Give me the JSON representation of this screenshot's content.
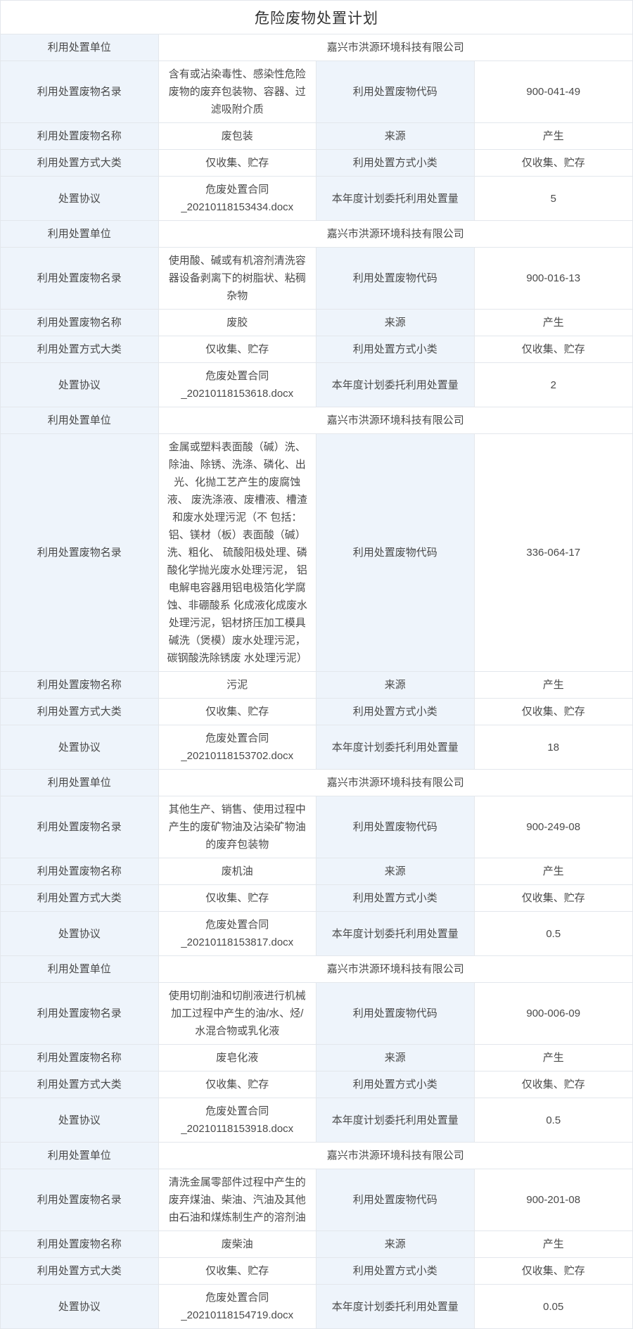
{
  "page_title": "危险废物处置计划",
  "labels": {
    "unit": "利用处置单位",
    "catalog": "利用处置废物名录",
    "code": "利用处置废物代码",
    "name": "利用处置废物名称",
    "source": "来源",
    "method_major": "利用处置方式大类",
    "method_minor": "利用处置方式小类",
    "agreement": "处置协议",
    "planned_amount": "本年度计划委托利用处置量"
  },
  "colors": {
    "label_bg": "#eef4fb",
    "border": "#e3e7ec",
    "text": "#4a4a4a"
  },
  "records": [
    {
      "unit": "嘉兴市洪源环境科技有限公司",
      "catalog": "含有或沾染毒性、感染性危险废物的废弃包装物、容器、过滤吸附介质",
      "code": "900-041-49",
      "name": "废包装",
      "source": "产生",
      "method_major": "仅收集、贮存",
      "method_minor": "仅收集、贮存",
      "agreement_file": "危废处置合同_20210118153434.docx",
      "planned_amount": "5"
    },
    {
      "unit": "嘉兴市洪源环境科技有限公司",
      "catalog": "使用酸、碱或有机溶剂清洗容器设备剥离下的树脂状、粘稠杂物",
      "code": "900-016-13",
      "name": "废胶",
      "source": "产生",
      "method_major": "仅收集、贮存",
      "method_minor": "仅收集、贮存",
      "agreement_file": "危废处置合同_20210118153618.docx",
      "planned_amount": "2"
    },
    {
      "unit": "嘉兴市洪源环境科技有限公司",
      "catalog": "金属或塑料表面酸（碱）洗、除油、除锈、洗涤、磷化、出光、化抛工艺产生的废腐蚀液、 废洗涤液、废槽液、槽渣和废水处理污泥（不 包括：铝、镁材（板）表面酸（碱）洗、粗化、 硫酸阳极处理、磷酸化学抛光废水处理污泥， 铝电解电容器用铝电极箔化学腐蚀、非硼酸系 化成液化成废水处理污泥，铝材挤压加工模具 碱洗（煲模）废水处理污泥，碳钢酸洗除锈废 水处理污泥）",
      "code": "336-064-17",
      "name": "污泥",
      "source": "产生",
      "method_major": "仅收集、贮存",
      "method_minor": "仅收集、贮存",
      "agreement_file": "危废处置合同_20210118153702.docx",
      "planned_amount": "18"
    },
    {
      "unit": "嘉兴市洪源环境科技有限公司",
      "catalog": "其他生产、销售、使用过程中产生的废矿物油及沾染矿物油的废弃包装物",
      "code": "900-249-08",
      "name": "废机油",
      "source": "产生",
      "method_major": "仅收集、贮存",
      "method_minor": "仅收集、贮存",
      "agreement_file": "危废处置合同_20210118153817.docx",
      "planned_amount": "0.5"
    },
    {
      "unit": "嘉兴市洪源环境科技有限公司",
      "catalog": "使用切削油和切削液进行机械加工过程中产生的油/水、烃/水混合物或乳化液",
      "code": "900-006-09",
      "name": "废皂化液",
      "source": "产生",
      "method_major": "仅收集、贮存",
      "method_minor": "仅收集、贮存",
      "agreement_file": "危废处置合同_20210118153918.docx",
      "planned_amount": "0.5"
    },
    {
      "unit": "嘉兴市洪源环境科技有限公司",
      "catalog": "清洗金属零部件过程中产生的废弃煤油、柴油、汽油及其他由石油和煤炼制生产的溶剂油",
      "code": "900-201-08",
      "name": "废柴油",
      "source": "产生",
      "method_major": "仅收集、贮存",
      "method_minor": "仅收集、贮存",
      "agreement_file": "危废处置合同_20210118154719.docx",
      "planned_amount": "0.05"
    }
  ]
}
